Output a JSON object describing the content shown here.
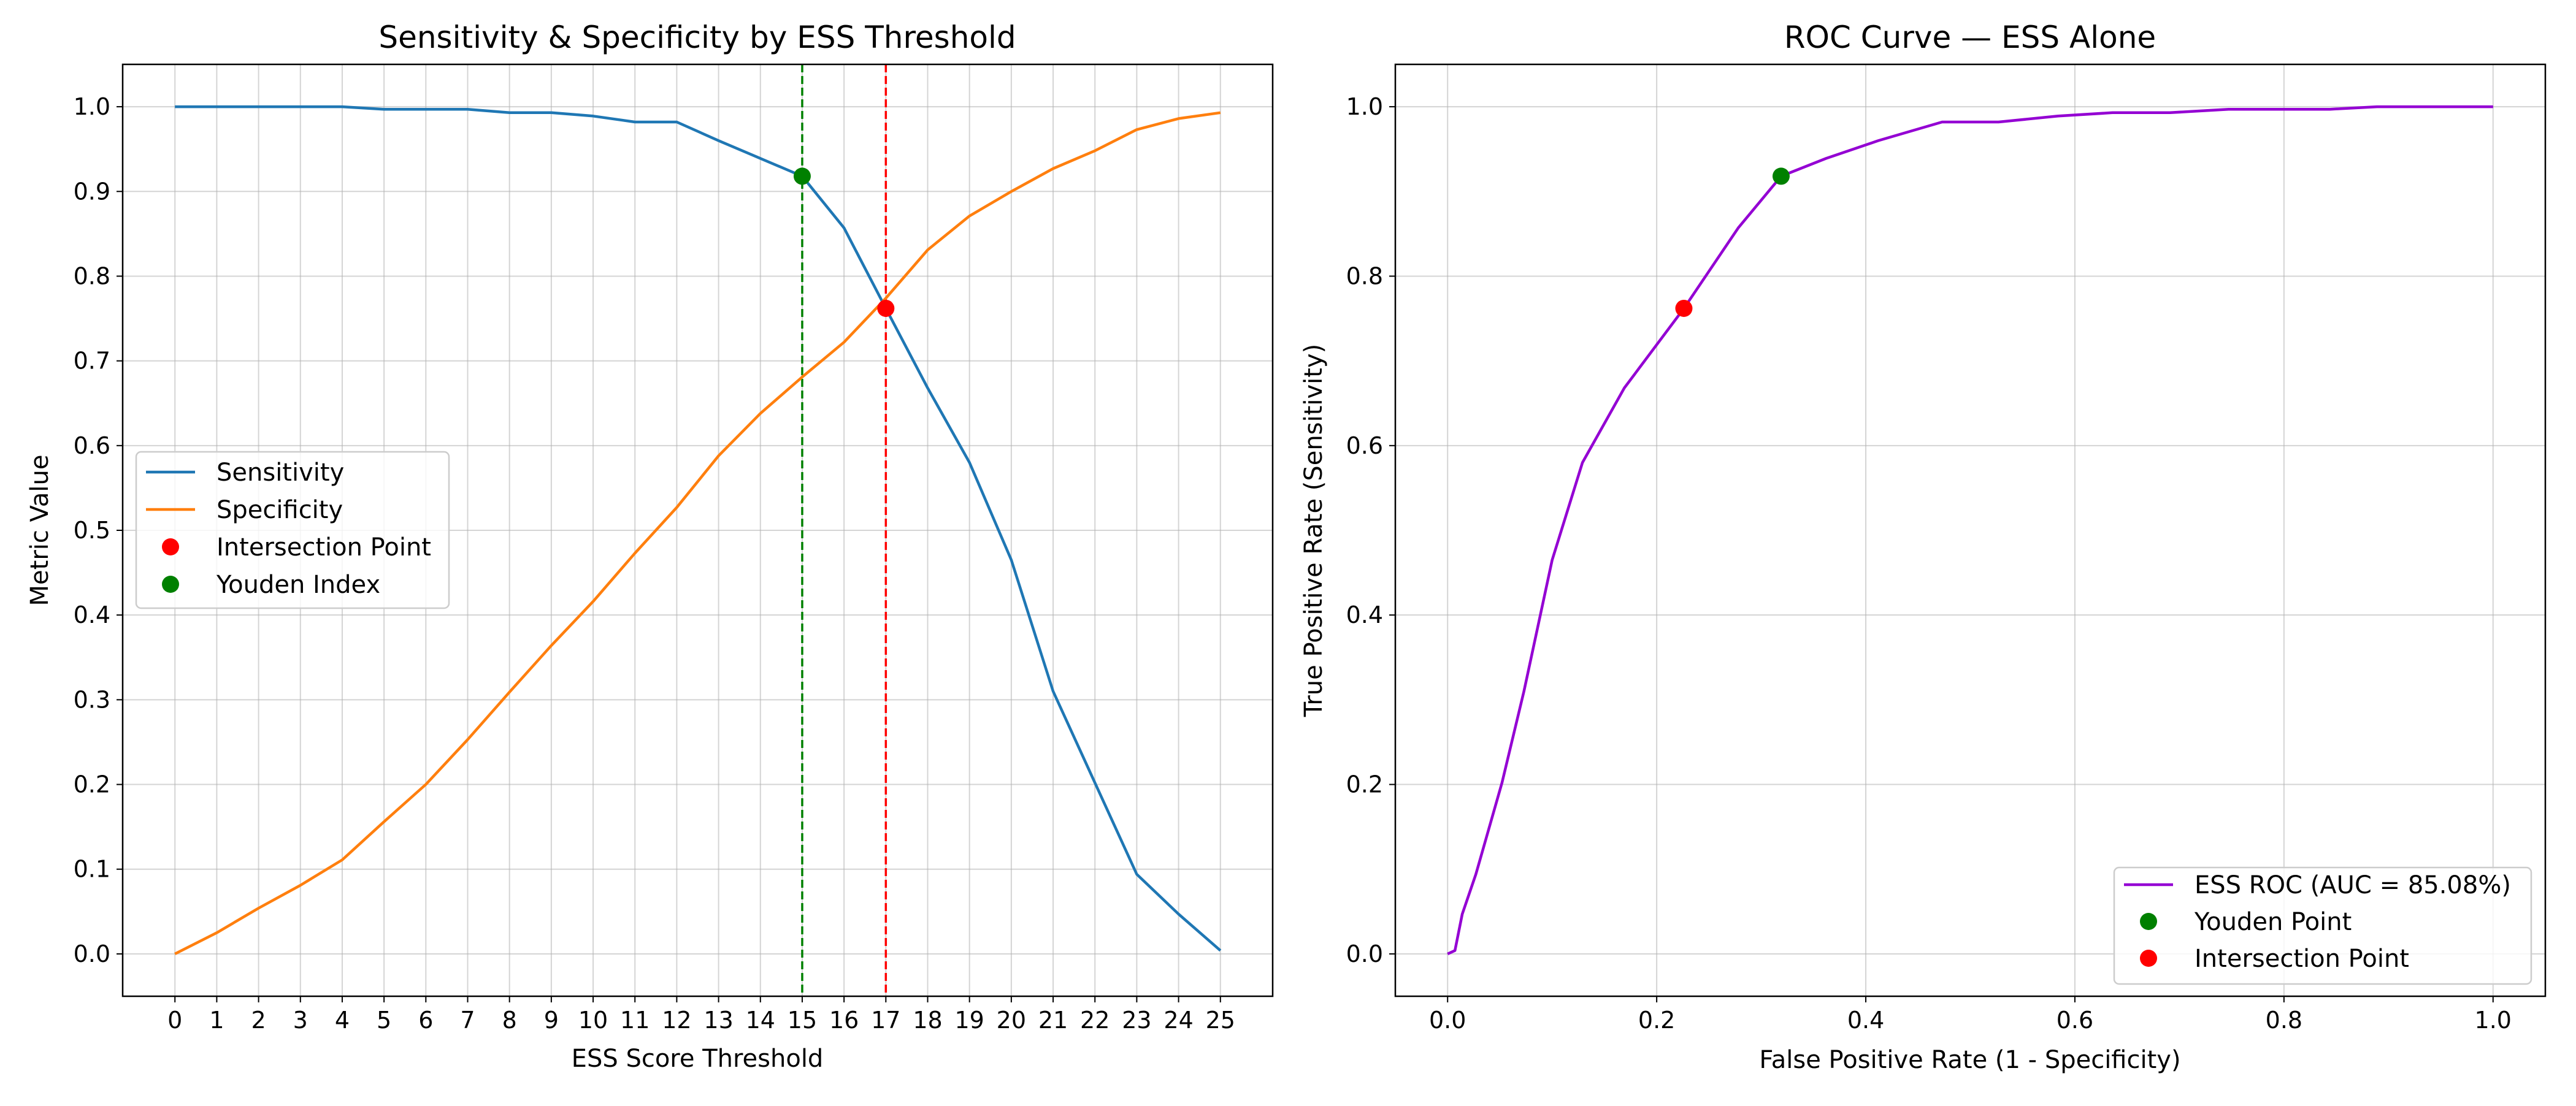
{
  "chart_data": [
    {
      "type": "line",
      "title": "Sensitivity & Specificity by ESS Threshold",
      "xlabel": "ESS Score Threshold",
      "ylabel": "Metric Value",
      "xlim": [
        -1.25,
        26.25
      ],
      "ylim": [
        -0.05,
        1.05
      ],
      "x_ticks": [
        0,
        1,
        2,
        3,
        4,
        5,
        6,
        7,
        8,
        9,
        10,
        11,
        12,
        13,
        14,
        15,
        16,
        17,
        18,
        19,
        20,
        21,
        22,
        23,
        24,
        25
      ],
      "y_ticks": [
        0.0,
        0.1,
        0.2,
        0.3,
        0.4,
        0.5,
        0.6,
        0.7,
        0.8,
        0.9,
        1.0
      ],
      "y_tick_labels": [
        "0.0",
        "0.1",
        "0.2",
        "0.3",
        "0.4",
        "0.5",
        "0.6",
        "0.7",
        "0.8",
        "0.9",
        "1.0"
      ],
      "grid": true,
      "legend_position": "center-left",
      "x": [
        0,
        1,
        2,
        3,
        4,
        5,
        6,
        7,
        8,
        9,
        10,
        11,
        12,
        13,
        14,
        15,
        16,
        17,
        18,
        19,
        20,
        21,
        22,
        23,
        24,
        25
      ],
      "series": [
        {
          "name": "Sensitivity",
          "color": "#1f77b4",
          "values": [
            1.0,
            1.0,
            1.0,
            1.0,
            1.0,
            0.997,
            0.997,
            0.997,
            0.993,
            0.993,
            0.989,
            0.982,
            0.982,
            0.96,
            0.939,
            0.918,
            0.857,
            0.762,
            0.668,
            0.58,
            0.465,
            0.31,
            0.202,
            0.094,
            0.047,
            0.004
          ]
        },
        {
          "name": "Specificity",
          "color": "#ff7f0e",
          "values": [
            0.0,
            0.025,
            0.054,
            0.081,
            0.111,
            0.156,
            0.2,
            0.253,
            0.309,
            0.364,
            0.416,
            0.473,
            0.527,
            0.588,
            0.638,
            0.681,
            0.722,
            0.774,
            0.831,
            0.871,
            0.9,
            0.927,
            0.948,
            0.973,
            0.986,
            0.993
          ]
        }
      ],
      "points": [
        {
          "name": "Intersection Point",
          "x": 17,
          "y": 0.762,
          "color": "#ff0000"
        },
        {
          "name": "Youden Index",
          "x": 15,
          "y": 0.918,
          "color": "#008000"
        }
      ],
      "vlines": [
        {
          "x": 15,
          "color": "#008000",
          "style": "dashed"
        },
        {
          "x": 17,
          "color": "#ff0000",
          "style": "dashed"
        }
      ]
    },
    {
      "type": "line",
      "title": "ROC Curve — ESS Alone",
      "xlabel": "False Positive Rate (1 - Specificity)",
      "ylabel": "True Positive Rate (Sensitivity)",
      "xlim": [
        -0.05,
        1.05
      ],
      "ylim": [
        -0.05,
        1.05
      ],
      "x_ticks": [
        0.0,
        0.2,
        0.4,
        0.6,
        0.8,
        1.0
      ],
      "x_tick_labels": [
        "0.0",
        "0.2",
        "0.4",
        "0.6",
        "0.8",
        "1.0"
      ],
      "y_ticks": [
        0.0,
        0.2,
        0.4,
        0.6,
        0.8,
        1.0
      ],
      "y_tick_labels": [
        "0.0",
        "0.2",
        "0.4",
        "0.6",
        "0.8",
        "1.0"
      ],
      "grid": true,
      "legend_position": "bottom-right",
      "series": [
        {
          "name": "ESS ROC (AUC = 85.08%)",
          "color": "#9400d3",
          "x": [
            0.0,
            0.007,
            0.014,
            0.027,
            0.052,
            0.073,
            0.1,
            0.129,
            0.169,
            0.226,
            0.278,
            0.319,
            0.362,
            0.412,
            0.473,
            0.527,
            0.584,
            0.636,
            0.691,
            0.747,
            0.8,
            0.844,
            0.889,
            0.919,
            0.946,
            0.975,
            1.0
          ],
          "y": [
            0.0,
            0.004,
            0.047,
            0.094,
            0.202,
            0.31,
            0.465,
            0.58,
            0.668,
            0.762,
            0.857,
            0.918,
            0.939,
            0.96,
            0.982,
            0.982,
            0.989,
            0.993,
            0.993,
            0.997,
            0.997,
            0.997,
            1.0,
            1.0,
            1.0,
            1.0,
            1.0
          ]
        }
      ],
      "points": [
        {
          "name": "Youden Point",
          "x": 0.319,
          "y": 0.918,
          "color": "#008000"
        },
        {
          "name": "Intersection Point",
          "x": 0.226,
          "y": 0.762,
          "color": "#ff0000"
        }
      ]
    }
  ]
}
